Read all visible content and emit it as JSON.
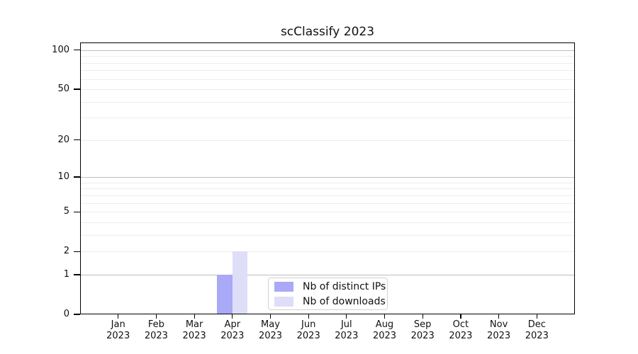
{
  "title": "scClassify 2023",
  "chart_data": {
    "type": "bar",
    "title": "scClassify 2023",
    "categories": [
      "Jan",
      "Feb",
      "Mar",
      "Apr",
      "May",
      "Jun",
      "Jul",
      "Aug",
      "Sep",
      "Oct",
      "Nov",
      "Dec"
    ],
    "category_year_label": "2023",
    "series": [
      {
        "name": "Nb of distinct IPs",
        "color": "#a9a9f8",
        "values": [
          0,
          0,
          0,
          1,
          0,
          0,
          0,
          0,
          0,
          0,
          0,
          0
        ]
      },
      {
        "name": "Nb of downloads",
        "color": "#dedef8",
        "values": [
          0,
          0,
          0,
          2,
          0,
          0,
          0,
          0,
          0,
          0,
          0,
          0
        ]
      }
    ],
    "xlabel": "",
    "ylabel": "",
    "y_scale": "log10(1+x)",
    "y_ticks": [
      0,
      1,
      2,
      5,
      10,
      20,
      50,
      100
    ],
    "ylim": [
      0,
      114.3
    ],
    "grid": true,
    "grid_major_values": [
      1,
      10,
      100
    ],
    "grid_minor_values": [
      2,
      3,
      4,
      5,
      6,
      7,
      8,
      9,
      20,
      30,
      40,
      50,
      60,
      70,
      80,
      90
    ],
    "legend_position": "lower center"
  },
  "colors": {
    "grid_minor": "#ededed",
    "grid_major": "#bdbdbd",
    "axis": "#000000",
    "background": "#ffffff"
  }
}
